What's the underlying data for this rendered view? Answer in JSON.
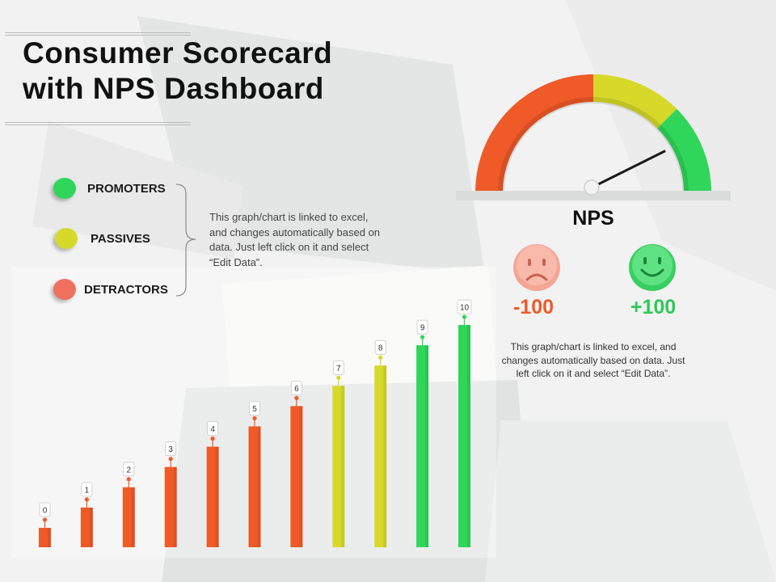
{
  "title": {
    "line1": "Consumer Scorecard",
    "line2": "with NPS Dashboard"
  },
  "legend": [
    {
      "label": "PROMOTERS",
      "color": "#2fd65a"
    },
    {
      "label": "PASSIVES",
      "color": "#d6d92a"
    },
    {
      "label": "DETRACTORS",
      "color": "#f07060"
    }
  ],
  "notes": {
    "left": "This graph/chart is linked to excel, and changes automatically based on data. Just left click on it and select “Edit Data”.",
    "right": "This graph/chart is linked to excel, and changes automatically based on data. Just left click on it and select “Edit Data”."
  },
  "nps": {
    "label": "NPS",
    "min_label": "-100",
    "max_label": "+100",
    "min_icon": "sad-face-icon",
    "max_icon": "happy-face-icon"
  },
  "chart_data": [
    {
      "type": "bar",
      "categories": [
        "0",
        "1",
        "2",
        "3",
        "4",
        "5",
        "6",
        "7",
        "8",
        "9",
        "10"
      ],
      "values": [
        0,
        1,
        2,
        3,
        4,
        5,
        6,
        7,
        8,
        9,
        10
      ],
      "data_labels": [
        "0",
        "1",
        "2",
        "3",
        "4",
        "5",
        "6",
        "7",
        "8",
        "9",
        "10"
      ],
      "colors": [
        "#f05a28",
        "#f05a28",
        "#f05a28",
        "#f05a28",
        "#f05a28",
        "#f05a28",
        "#f05a28",
        "#d6d92a",
        "#d6d92a",
        "#2fd65a",
        "#2fd65a"
      ],
      "title": "",
      "xlabel": "",
      "ylabel": "",
      "grid": false,
      "legend": "left"
    },
    {
      "type": "gauge",
      "title": "NPS",
      "min": -100,
      "max": 100,
      "bands": [
        {
          "from": -100,
          "to": 0,
          "color": "#f05a28"
        },
        {
          "from": 0,
          "to": 50,
          "color": "#d6d92a"
        },
        {
          "from": 50,
          "to": 100,
          "color": "#2fd65a"
        }
      ],
      "needle_value": 70,
      "grid": false
    }
  ]
}
